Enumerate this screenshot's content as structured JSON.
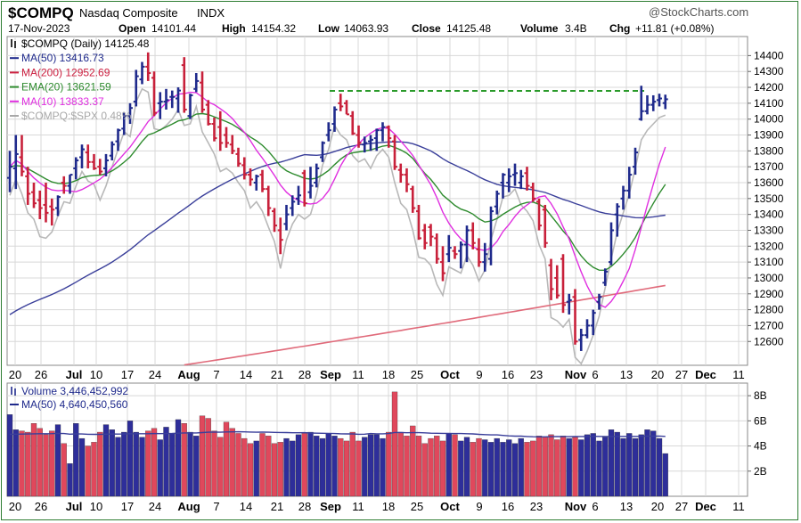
{
  "header": {
    "symbol": "$COMPQ",
    "name": "Nasdaq Composite",
    "exchange": "INDX",
    "date": "17-Nov-2023",
    "watermark": "@StockCharts.com",
    "quote": {
      "open_label": "Open",
      "open": "14101.44",
      "high_label": "High",
      "high": "14154.32",
      "low_label": "Low",
      "low": "14063.93",
      "close_label": "Close",
      "close": "14125.48",
      "volume_label": "Volume",
      "volume": "3.4B",
      "chg_label": "Chg",
      "chg": "+11.81 (+0.08%)"
    }
  },
  "legend": [
    {
      "label": "$COMPQ (Daily) 14125.48",
      "color": "#000000",
      "marker": "bars"
    },
    {
      "label": "MA(50) 13416.73",
      "color": "#1f2a8c",
      "marker": "line"
    },
    {
      "label": "MA(200) 12952.69",
      "color": "#cc2040",
      "marker": "line"
    },
    {
      "label": "EMA(20) 13621.59",
      "color": "#2e8b2e",
      "marker": "line"
    },
    {
      "label": "MA(10) 13833.37",
      "color": "#e030e0",
      "marker": "line"
    },
    {
      "label": "$COMPQ:$SPX 0.48%",
      "color": "#a8a8a8",
      "marker": "line"
    }
  ],
  "volume_legend": [
    {
      "label": "Volume 3,446,452,992",
      "color": "#1f2a8c",
      "marker": "bars"
    },
    {
      "label": "MA(50) 4,640,450,560",
      "color": "#1f2a8c",
      "marker": "line"
    }
  ],
  "x_axis": {
    "labels": [
      "20",
      "26",
      "Jul",
      "10",
      "17",
      "24",
      "Aug",
      "7",
      "14",
      "21",
      "28",
      "Sep",
      "11",
      "18",
      "25",
      "Oct",
      "9",
      "16",
      "23",
      "Nov",
      "6",
      "13",
      "20",
      "27",
      "Dec",
      "11"
    ]
  },
  "colors": {
    "up": "#1f2a8c",
    "down": "#c8203a",
    "vol_up": "#2e2e9a",
    "vol_down": "#e0485c",
    "ma50": "#3a3f9a",
    "ma200": "#e06a7a",
    "ema20": "#2e8b2e",
    "ma10": "#e030e0",
    "ratio": "#b8b8b8",
    "resistance": "#2a9a2a",
    "grid": "#d8d8d8",
    "frame": "#2e7d32"
  },
  "chart_data": [
    {
      "type": "ohlc",
      "title": "$COMPQ (Daily) 14125.48",
      "ylim": [
        12450,
        14520
      ],
      "yticks": [
        12600,
        12700,
        12800,
        12900,
        13000,
        13100,
        13200,
        13300,
        13400,
        13500,
        13600,
        13700,
        13800,
        13900,
        14000,
        14100,
        14200,
        14300,
        14400
      ],
      "dates": [
        "Jun 14",
        "Jun 15",
        "Jun 16",
        "Jun 20",
        "Jun 21",
        "Jun 22",
        "Jun 23",
        "Jun 26",
        "Jun 27",
        "Jun 28",
        "Jun 29",
        "Jun 30",
        "Jul 3",
        "Jul 5",
        "Jul 6",
        "Jul 7",
        "Jul 10",
        "Jul 11",
        "Jul 12",
        "Jul 13",
        "Jul 14",
        "Jul 17",
        "Jul 18",
        "Jul 19",
        "Jul 20",
        "Jul 21",
        "Jul 24",
        "Jul 25",
        "Jul 26",
        "Jul 27",
        "Jul 28",
        "Jul 31",
        "Aug 1",
        "Aug 2",
        "Aug 3",
        "Aug 4",
        "Aug 7",
        "Aug 8",
        "Aug 9",
        "Aug 10",
        "Aug 11",
        "Aug 14",
        "Aug 15",
        "Aug 16",
        "Aug 17",
        "Aug 18",
        "Aug 21",
        "Aug 22",
        "Aug 23",
        "Aug 24",
        "Aug 25",
        "Aug 28",
        "Aug 29",
        "Aug 30",
        "Aug 31",
        "Sep 1",
        "Sep 5",
        "Sep 6",
        "Sep 7",
        "Sep 8",
        "Sep 11",
        "Sep 12",
        "Sep 13",
        "Sep 14",
        "Sep 15",
        "Sep 18",
        "Sep 19",
        "Sep 20",
        "Sep 21",
        "Sep 22",
        "Sep 25",
        "Sep 26",
        "Sep 27",
        "Sep 28",
        "Sep 29",
        "Oct 2",
        "Oct 3",
        "Oct 4",
        "Oct 5",
        "Oct 6",
        "Oct 9",
        "Oct 10",
        "Oct 11",
        "Oct 12",
        "Oct 13",
        "Oct 16",
        "Oct 17",
        "Oct 18",
        "Oct 19",
        "Oct 20",
        "Oct 23",
        "Oct 24",
        "Oct 25",
        "Oct 26",
        "Oct 27",
        "Oct 30",
        "Oct 31",
        "Nov 1",
        "Nov 2",
        "Nov 3",
        "Nov 6",
        "Nov 7",
        "Nov 8",
        "Nov 9",
        "Nov 10",
        "Nov 13",
        "Nov 14",
        "Nov 15",
        "Nov 16",
        "Nov 17"
      ],
      "series": {
        "open": [
          13630,
          13690,
          13760,
          13640,
          13540,
          13490,
          13460,
          13450,
          13440,
          13600,
          13580,
          13690,
          13760,
          13790,
          13730,
          13700,
          13690,
          13770,
          13860,
          13940,
          14020,
          14110,
          14250,
          14330,
          14260,
          14100,
          14110,
          14140,
          14130,
          14340,
          14020,
          14190,
          14230,
          14090,
          13970,
          13950,
          13900,
          13840,
          13780,
          13710,
          13650,
          13600,
          13650,
          13560,
          13420,
          13300,
          13340,
          13440,
          13500,
          13660,
          13540,
          13600,
          13760,
          13900,
          13970,
          14100,
          14100,
          14020,
          13900,
          13840,
          13860,
          13880,
          13930,
          13950,
          13860,
          13680,
          13650,
          13560,
          13420,
          13300,
          13320,
          13250,
          13100,
          13150,
          13170,
          13170,
          13210,
          13300,
          13180,
          13100,
          13120,
          13450,
          13600,
          13600,
          13650,
          13600,
          13660,
          13570,
          13480,
          13430,
          13080,
          13000,
          13120,
          12850,
          12880,
          12610,
          12640,
          12700,
          12850,
          12970,
          13100,
          13400,
          13500,
          13550,
          13700,
          14000,
          14050,
          14090,
          14120,
          14101
        ],
        "high": [
          13800,
          13900,
          13900,
          13700,
          13600,
          13550,
          13600,
          13500,
          13520,
          13640,
          13650,
          13760,
          13840,
          13840,
          13780,
          13750,
          13780,
          13860,
          13940,
          14040,
          14100,
          14310,
          14360,
          14420,
          14300,
          14170,
          14190,
          14180,
          14200,
          14390,
          14160,
          14290,
          14300,
          14120,
          14010,
          14050,
          13950,
          13900,
          13820,
          13760,
          13690,
          13650,
          13680,
          13580,
          13440,
          13380,
          13460,
          13520,
          13580,
          13680,
          13700,
          13720,
          13860,
          13980,
          14080,
          14160,
          14120,
          14050,
          13960,
          13890,
          13900,
          13940,
          13980,
          13960,
          13900,
          13720,
          13690,
          13580,
          13460,
          13340,
          13340,
          13280,
          13200,
          13270,
          13200,
          13230,
          13330,
          13350,
          13250,
          13220,
          13450,
          13550,
          13660,
          13690,
          13720,
          13680,
          13700,
          13600,
          13500,
          13460,
          13120,
          13080,
          13150,
          12900,
          12930,
          12680,
          12740,
          12800,
          12900,
          13060,
          13350,
          13470,
          13580,
          13700,
          13820,
          14210,
          14150,
          14150,
          14160,
          14154
        ],
        "low": [
          13540,
          13560,
          13640,
          13460,
          13440,
          13370,
          13350,
          13330,
          13390,
          13530,
          13530,
          13620,
          13690,
          13690,
          13680,
          13650,
          13640,
          13740,
          13800,
          13900,
          13970,
          14080,
          14220,
          14240,
          14020,
          14000,
          14060,
          14070,
          14040,
          14040,
          14000,
          14170,
          14040,
          13960,
          13860,
          13800,
          13820,
          13780,
          13700,
          13620,
          13580,
          13550,
          13540,
          13390,
          13290,
          13150,
          13300,
          13390,
          13460,
          13450,
          13500,
          13570,
          13730,
          13860,
          13920,
          14050,
          14030,
          13900,
          13820,
          13790,
          13800,
          13800,
          13860,
          13820,
          13680,
          13600,
          13540,
          13410,
          13240,
          13180,
          13200,
          13090,
          12980,
          13100,
          13120,
          13060,
          13100,
          13180,
          13070,
          13040,
          13080,
          13400,
          13500,
          13540,
          13580,
          13560,
          13550,
          13480,
          13300,
          13190,
          12860,
          12870,
          12780,
          12770,
          12580,
          12540,
          12620,
          12640,
          12800,
          12950,
          13080,
          13260,
          13430,
          13500,
          13650,
          13990,
          14030,
          14050,
          14080,
          14063
        ],
        "close": [
          13700,
          13780,
          13670,
          13530,
          13470,
          13440,
          13410,
          13430,
          13510,
          13580,
          13650,
          13740,
          13810,
          13730,
          13690,
          13670,
          13740,
          13840,
          13930,
          14020,
          14070,
          14270,
          14330,
          14290,
          14040,
          14110,
          14120,
          14140,
          14180,
          14060,
          14150,
          14240,
          14060,
          13970,
          13880,
          13850,
          13850,
          13800,
          13720,
          13650,
          13620,
          13640,
          13560,
          13440,
          13330,
          13240,
          13400,
          13480,
          13520,
          13470,
          13580,
          13690,
          13850,
          13930,
          14060,
          14080,
          14030,
          13910,
          13850,
          13850,
          13870,
          13930,
          13950,
          13880,
          13700,
          13650,
          13590,
          13440,
          13250,
          13220,
          13260,
          13120,
          13030,
          13190,
          13150,
          13210,
          13300,
          13220,
          13100,
          13150,
          13420,
          13530,
          13650,
          13640,
          13660,
          13640,
          13580,
          13500,
          13330,
          13220,
          12930,
          12890,
          12830,
          12860,
          12600,
          12640,
          12700,
          12780,
          12880,
          13040,
          13300,
          13450,
          13550,
          13650,
          13790,
          14050,
          14090,
          14110,
          14130,
          14125
        ]
      }
    },
    {
      "type": "bar",
      "title": "Volume 3,446,452,992",
      "ylim": [
        0,
        9000000000
      ],
      "yticks": [
        2000000000,
        4000000000,
        6000000000,
        8000000000
      ],
      "ytick_labels": [
        "2B",
        "4B",
        "6B",
        "8B"
      ],
      "values": [
        6.5,
        5.3,
        5.2,
        5.1,
        5.8,
        5.4,
        4.9,
        5.2,
        5.7,
        4.2,
        2.6,
        5.8,
        4.6,
        4.0,
        4.3,
        5.1,
        5.7,
        5.3,
        4.7,
        5.1,
        6.0,
        5.1,
        4.7,
        5.2,
        5.4,
        4.5,
        5.5,
        5.0,
        6.1,
        5.8,
        5.1,
        4.8,
        6.4,
        6.2,
        5.2,
        4.7,
        5.9,
        5.4,
        5.0,
        4.6,
        4.2,
        4.4,
        5.0,
        4.8,
        4.2,
        4.3,
        4.6,
        4.4,
        4.9,
        5.0,
        5.1,
        4.8,
        4.6,
        5.0,
        4.8,
        4.6,
        4.4,
        5.1,
        4.4,
        4.7,
        4.9,
        4.9,
        4.6,
        5.1,
        8.3,
        5.1,
        4.8,
        5.6,
        4.8,
        4.2,
        4.6,
        4.8,
        4.4,
        5.0,
        4.9,
        4.4,
        4.7,
        4.3,
        4.6,
        4.5,
        4.3,
        4.6,
        4.3,
        4.5,
        4.2,
        4.6,
        4.3,
        4.4,
        4.8,
        4.7,
        4.9,
        4.5,
        4.8,
        4.6,
        4.7,
        4.5,
        4.9,
        5.0,
        4.4,
        4.7,
        5.3,
        5.1,
        4.6,
        5.0,
        4.6,
        4.9,
        5.3,
        5.2,
        4.6,
        3.4
      ],
      "units": "billions"
    }
  ]
}
